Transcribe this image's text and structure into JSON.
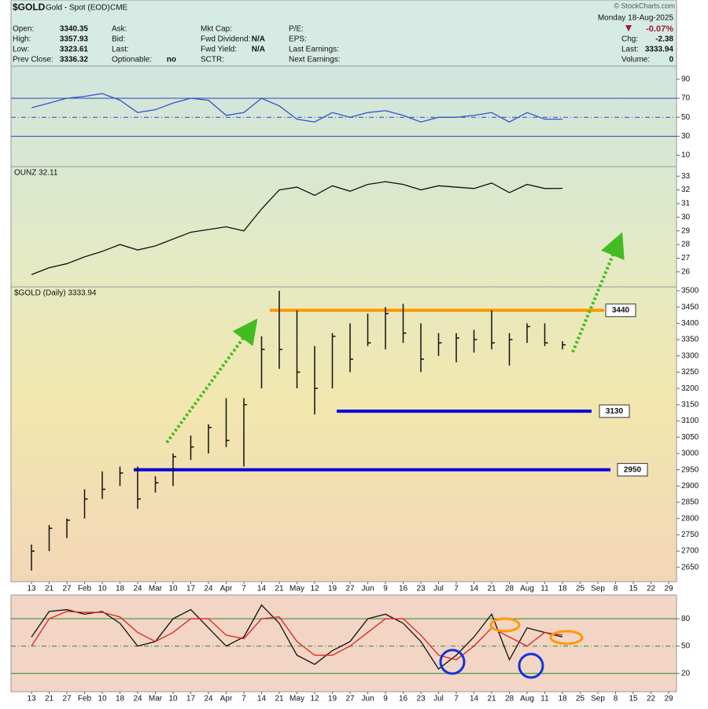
{
  "header": {
    "symbol": "$GOLD",
    "name": "Gold - Spot (EOD)",
    "exchange": "CME",
    "copyright": "© StockCharts.com",
    "date": "Monday 18-Aug-2025",
    "change_pct": "-0.07%",
    "columns": [
      [
        {
          "label": "Open:",
          "value": 3340.35
        },
        {
          "label": "High:",
          "value": 3357.93
        },
        {
          "label": "Low:",
          "value": 3323.61
        },
        {
          "label": "Prev Close:",
          "value": 3336.32
        }
      ],
      [
        {
          "label": "Ask:"
        },
        {
          "label": "Bid:"
        },
        {
          "label": "Last:"
        },
        {
          "label": "Optionable:",
          "value": "no"
        }
      ],
      [
        {
          "label": "Mkt Cap:"
        },
        {
          "label": "Fwd Dividend:",
          "value": "N/A"
        },
        {
          "label": "Fwd Yield:",
          "value": "N/A"
        },
        {
          "label": "SCTR:"
        }
      ],
      [
        {
          "label": "P/E:"
        },
        {
          "label": "EPS:"
        },
        {
          "label": "Last Earnings:"
        },
        {
          "label": "Next Earnings:"
        }
      ]
    ],
    "right": [
      {
        "label": "Chg:",
        "value": -2.38
      },
      {
        "label": "Last:",
        "value": 3333.94
      },
      {
        "label": "Volume:",
        "value": 0
      }
    ]
  },
  "chart_data": [
    {
      "type": "line",
      "ylim": [
        -2,
        104
      ],
      "yticks": [
        10,
        30,
        50,
        70,
        90
      ],
      "levels": [
        {
          "value": 70,
          "style": "solid"
        },
        {
          "value": 50,
          "style": "dashdot"
        },
        {
          "value": 30,
          "style": "solid"
        }
      ],
      "level_color": "#3344bb",
      "series": [
        {
          "color": "#3355cc",
          "values": [
            60,
            65,
            70,
            72,
            75,
            68,
            55,
            58,
            65,
            70,
            68,
            52,
            55,
            70,
            62,
            48,
            45,
            55,
            50,
            55,
            57,
            52,
            45,
            50,
            50,
            52,
            55,
            45,
            55,
            48,
            48,
            null,
            null,
            null,
            null,
            null,
            null
          ]
        }
      ]
    },
    {
      "type": "line",
      "label": "OUNZ 32.11",
      "ylim": [
        24.9,
        33.7
      ],
      "yticks": [
        26,
        27,
        28,
        29,
        30,
        31,
        32,
        33
      ],
      "series": [
        {
          "color": "#111111",
          "values": [
            25.8,
            26.3,
            26.6,
            27.1,
            27.5,
            28.0,
            27.6,
            27.9,
            28.4,
            28.9,
            29.1,
            29.3,
            29.0,
            30.6,
            32.0,
            32.2,
            31.6,
            32.3,
            31.9,
            32.4,
            32.6,
            32.4,
            32.0,
            32.3,
            32.2,
            32.1,
            32.5,
            31.8,
            32.4,
            32.1,
            32.11,
            null,
            null,
            null,
            null,
            null,
            null
          ]
        }
      ]
    },
    {
      "type": "hlc",
      "label": "$GOLD (Daily) 3333.94",
      "ylim": [
        2606,
        3512
      ],
      "yticks": [
        2650,
        2700,
        2750,
        2800,
        2850,
        2900,
        2950,
        3000,
        3050,
        3100,
        3150,
        3200,
        3250,
        3300,
        3350,
        3400,
        3450,
        3500
      ],
      "categories": [
        "13",
        "21",
        "27",
        "Feb",
        "10",
        "18",
        "24",
        "Mar",
        "10",
        "17",
        "24",
        "Apr",
        "7",
        "14",
        "21",
        "May",
        "12",
        "19",
        "27",
        "Jun",
        "9",
        "16",
        "23",
        "Jul",
        "7",
        "14",
        "21",
        "28",
        "Aug",
        "11",
        "18",
        "25",
        "Sep",
        "8",
        "15",
        "22",
        "29"
      ],
      "color": "#111111",
      "high": [
        2720,
        2780,
        2800,
        2890,
        2945,
        2960,
        2960,
        2930,
        3000,
        3055,
        3090,
        3170,
        3170,
        3360,
        3500,
        3440,
        3330,
        3370,
        3400,
        3430,
        3450,
        3460,
        3400,
        3370,
        3370,
        3380,
        3440,
        3370,
        3400,
        3400,
        3345,
        null,
        null,
        null,
        null,
        null,
        null
      ],
      "low": [
        2640,
        2700,
        2740,
        2800,
        2860,
        2900,
        2830,
        2880,
        2900,
        2980,
        3000,
        3020,
        2960,
        3200,
        3260,
        3200,
        3120,
        3200,
        3250,
        3330,
        3320,
        3340,
        3250,
        3300,
        3280,
        3310,
        3320,
        3270,
        3340,
        3330,
        3320,
        null,
        null,
        null,
        null,
        null,
        null
      ],
      "close": [
        2700,
        2770,
        2795,
        2860,
        2890,
        2940,
        2860,
        2910,
        2990,
        3020,
        3080,
        3040,
        3150,
        3320,
        3320,
        3250,
        3200,
        3360,
        3290,
        3340,
        3430,
        3370,
        3290,
        3340,
        3355,
        3350,
        3340,
        3350,
        3390,
        3340,
        3334,
        null,
        null,
        null,
        null,
        null,
        null
      ],
      "levels": [
        {
          "value": 3440,
          "color": "#ff9900"
        },
        {
          "value": 3130,
          "color": "#0000dd"
        },
        {
          "value": 2950,
          "color": "#0000dd"
        }
      ]
    },
    {
      "type": "line",
      "ylim": [
        0,
        106
      ],
      "yticks": [
        20,
        50,
        80
      ],
      "categories": [
        "13",
        "21",
        "27",
        "Feb",
        "10",
        "18",
        "24",
        "Mar",
        "10",
        "17",
        "24",
        "Apr",
        "7",
        "14",
        "21",
        "May",
        "12",
        "19",
        "27",
        "Jun",
        "9",
        "16",
        "23",
        "Jul",
        "7",
        "14",
        "21",
        "28",
        "Aug",
        "11",
        "18",
        "25",
        "Sep",
        "8",
        "15",
        "22",
        "29"
      ],
      "levels": [
        {
          "value": 80,
          "style": "solid"
        },
        {
          "value": 50,
          "style": "dashdot"
        },
        {
          "value": 20,
          "style": "solid"
        }
      ],
      "level_color": "#2a8a2a",
      "series": [
        {
          "color": "#111111",
          "values": [
            60,
            88,
            90,
            85,
            88,
            75,
            50,
            55,
            80,
            90,
            70,
            50,
            60,
            95,
            75,
            40,
            30,
            45,
            55,
            80,
            85,
            75,
            55,
            25,
            40,
            60,
            85,
            35,
            70,
            65,
            60,
            null,
            null,
            null,
            null,
            null,
            null
          ]
        },
        {
          "color": "#e02020",
          "values": [
            50,
            80,
            88,
            87,
            87,
            82,
            65,
            55,
            65,
            80,
            80,
            62,
            58,
            80,
            82,
            55,
            40,
            40,
            50,
            65,
            80,
            80,
            62,
            40,
            35,
            50,
            70,
            60,
            50,
            65,
            62,
            null,
            null,
            null,
            null,
            null,
            null
          ]
        }
      ]
    }
  ]
}
